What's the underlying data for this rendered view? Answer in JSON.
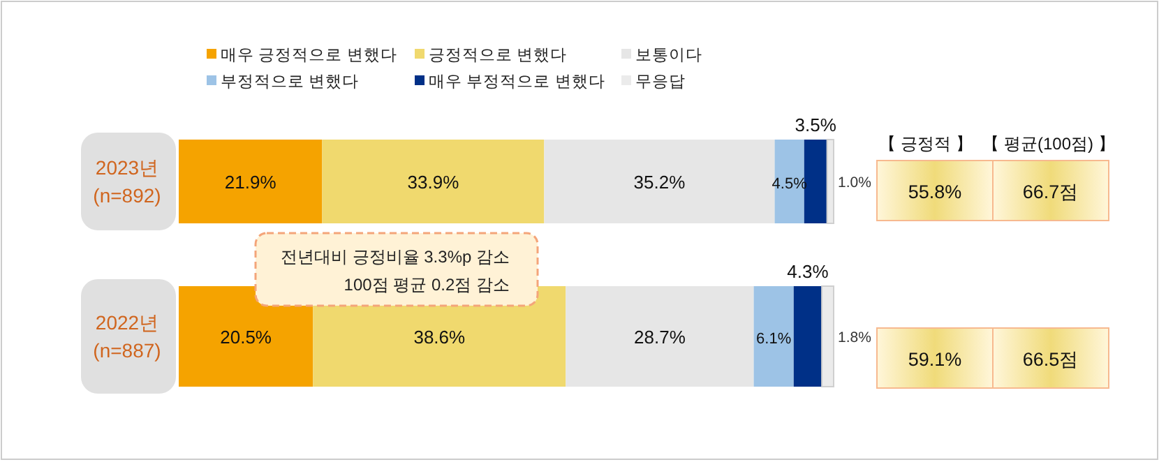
{
  "chart_data": [
    {
      "type": "bar",
      "orientation": "horizontal",
      "stacked": true,
      "categories": [
        "2023년\n(n=892)",
        "2022년\n(n=887)"
      ],
      "tick_labels": "y",
      "legend": "top",
      "series": [
        {
          "name": "매우 긍정적으로 변했다",
          "color": "#f5a300",
          "values": [
            21.9,
            20.5
          ],
          "value_labels": [
            "21.9%",
            "20.5%"
          ]
        },
        {
          "name": "긍정적으로 변했다",
          "color": "#f0d96e",
          "values": [
            33.9,
            38.6
          ],
          "value_labels": [
            "33.9%",
            "38.6%"
          ]
        },
        {
          "name": "보통이다",
          "color": "#e6e6e6",
          "values": [
            35.2,
            28.7
          ],
          "value_labels": [
            "35.2%",
            "28.7%"
          ]
        },
        {
          "name": "부정적으로 변했다",
          "color": "#9dc3e6",
          "values": [
            4.5,
            6.1
          ],
          "value_labels": [
            "4.5%",
            "6.1%"
          ]
        },
        {
          "name": "매우 부정적으로 변했다",
          "color": "#003087",
          "values": [
            3.5,
            4.3
          ],
          "value_labels": [
            "3.5%",
            "4.3%"
          ]
        },
        {
          "name": "무응답",
          "color": "#ebebeb",
          "values": [
            1.0,
            1.8
          ],
          "value_labels": [
            "1.0%",
            "1.8%"
          ]
        }
      ],
      "annotations": [
        "전년대비 긍정비율 3.3%p 감소",
        "100점 평균 0.2점 감소"
      ]
    },
    {
      "type": "other",
      "annotations": [
        "【 긍정적 】",
        "【 평균(100점) 】",
        "55.8%",
        "66.7점",
        "59.1%",
        "66.5점"
      ]
    }
  ]
}
